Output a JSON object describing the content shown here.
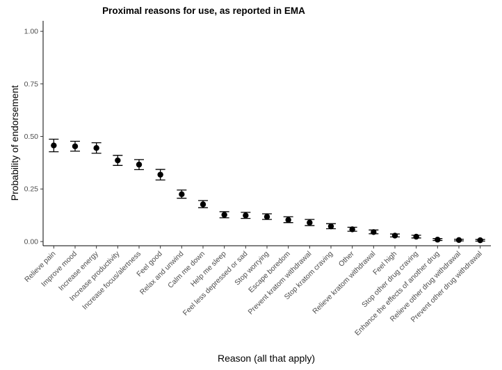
{
  "chart_data": {
    "type": "scatter",
    "title": "Proximal reasons for use, as reported in EMA",
    "xlabel": "Reason (all that apply)",
    "ylabel": "Probability of endorsement",
    "ylim": [
      -0.02,
      1.05
    ],
    "yticks": [
      0.0,
      0.25,
      0.5,
      0.75,
      1.0
    ],
    "ytick_labels": [
      "0.00",
      "0.25",
      "0.50",
      "0.75",
      "1.00"
    ],
    "grid": false,
    "categories": [
      "Relieve pain",
      "Improve mood",
      "Increase energy",
      "Increase productivity",
      "Increase focus/alertness",
      "Feel good",
      "Relax and unwind",
      "Calm me down",
      "Help me sleep",
      "Feel less depressed or sad",
      "Stop worrying",
      "Escape boredom",
      "Prevent kratom withdrawal",
      "Stop kratom craving",
      "Other",
      "Relieve kratom withdrawal",
      "Feel high",
      "Stop other drug craving",
      "Enhance the effects of another drug",
      "Relieve other drug withdrawal",
      "Prevent other drug withdrawal"
    ],
    "values": [
      0.457,
      0.453,
      0.445,
      0.386,
      0.366,
      0.318,
      0.225,
      0.177,
      0.127,
      0.124,
      0.118,
      0.103,
      0.09,
      0.072,
      0.058,
      0.045,
      0.028,
      0.023,
      0.009,
      0.007,
      0.006
    ],
    "lower": [
      0.427,
      0.43,
      0.42,
      0.362,
      0.342,
      0.293,
      0.206,
      0.161,
      0.113,
      0.11,
      0.105,
      0.09,
      0.076,
      0.061,
      0.049,
      0.037,
      0.022,
      0.017,
      0.005,
      0.003,
      0.002
    ],
    "upper": [
      0.487,
      0.477,
      0.47,
      0.41,
      0.39,
      0.343,
      0.245,
      0.195,
      0.142,
      0.139,
      0.132,
      0.118,
      0.105,
      0.085,
      0.068,
      0.055,
      0.036,
      0.03,
      0.014,
      0.011,
      0.01
    ]
  }
}
